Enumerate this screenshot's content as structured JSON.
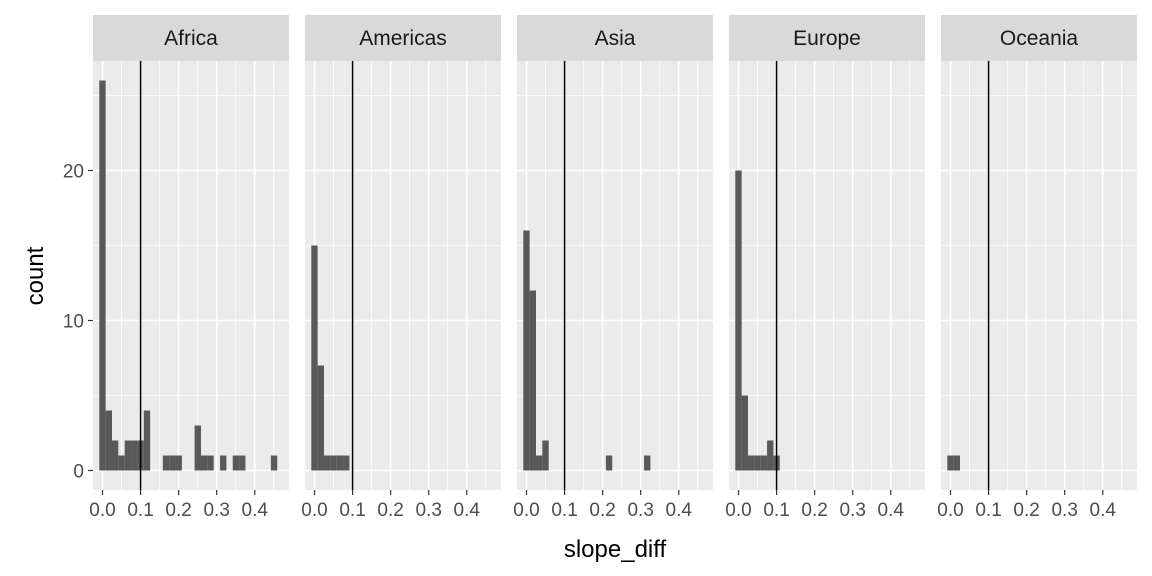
{
  "chart_data": {
    "type": "bar",
    "subtype": "faceted histogram",
    "xlabel": "slope_diff",
    "ylabel": "count",
    "xlim": [
      -0.025,
      0.49
    ],
    "ylim": [
      -1.3,
      27.3
    ],
    "x_ticks": [
      0.0,
      0.1,
      0.2,
      0.3,
      0.4
    ],
    "x_tick_labels": [
      "0.0",
      "0.1",
      "0.2",
      "0.3",
      "0.4"
    ],
    "y_ticks": [
      0,
      10,
      20
    ],
    "y_tick_labels": [
      "0",
      "10",
      "20"
    ],
    "bin_width": 0.0167,
    "reference_line_x": 0.1,
    "grid": true,
    "colors": {
      "bar": "#595959",
      "panel_background": "#ebebeb",
      "strip_background": "#d9d9d9",
      "grid": "#ffffff",
      "reference_line": "#000000"
    },
    "facets": [
      {
        "name": "Africa",
        "bins": [
          {
            "x0": -0.0085,
            "x1": 0.0082,
            "count": 26
          },
          {
            "x0": 0.0082,
            "x1": 0.0249,
            "count": 4
          },
          {
            "x0": 0.0249,
            "x1": 0.0416,
            "count": 2
          },
          {
            "x0": 0.0416,
            "x1": 0.0583,
            "count": 1
          },
          {
            "x0": 0.0583,
            "x1": 0.075,
            "count": 2
          },
          {
            "x0": 0.075,
            "x1": 0.0917,
            "count": 2
          },
          {
            "x0": 0.0917,
            "x1": 0.1084,
            "count": 2
          },
          {
            "x0": 0.1084,
            "x1": 0.1251,
            "count": 4
          },
          {
            "x0": 0.1585,
            "x1": 0.1752,
            "count": 1
          },
          {
            "x0": 0.1752,
            "x1": 0.1919,
            "count": 1
          },
          {
            "x0": 0.1919,
            "x1": 0.2086,
            "count": 1
          },
          {
            "x0": 0.242,
            "x1": 0.2587,
            "count": 3
          },
          {
            "x0": 0.2587,
            "x1": 0.2754,
            "count": 1
          },
          {
            "x0": 0.2754,
            "x1": 0.2921,
            "count": 1
          },
          {
            "x0": 0.3088,
            "x1": 0.3255,
            "count": 1
          },
          {
            "x0": 0.3422,
            "x1": 0.3589,
            "count": 1
          },
          {
            "x0": 0.3589,
            "x1": 0.3756,
            "count": 1
          },
          {
            "x0": 0.4424,
            "x1": 0.4591,
            "count": 1
          }
        ]
      },
      {
        "name": "Americas",
        "bins": [
          {
            "x0": -0.0085,
            "x1": 0.0082,
            "count": 15
          },
          {
            "x0": 0.0082,
            "x1": 0.0249,
            "count": 7
          },
          {
            "x0": 0.0249,
            "x1": 0.0416,
            "count": 1
          },
          {
            "x0": 0.0416,
            "x1": 0.0583,
            "count": 1
          },
          {
            "x0": 0.0583,
            "x1": 0.075,
            "count": 1
          },
          {
            "x0": 0.075,
            "x1": 0.0917,
            "count": 1
          }
        ]
      },
      {
        "name": "Asia",
        "bins": [
          {
            "x0": -0.0085,
            "x1": 0.0082,
            "count": 16
          },
          {
            "x0": 0.0082,
            "x1": 0.0249,
            "count": 12
          },
          {
            "x0": 0.0249,
            "x1": 0.0416,
            "count": 1
          },
          {
            "x0": 0.0416,
            "x1": 0.0583,
            "count": 2
          },
          {
            "x0": 0.2086,
            "x1": 0.2253,
            "count": 1
          },
          {
            "x0": 0.3088,
            "x1": 0.3255,
            "count": 1
          }
        ]
      },
      {
        "name": "Europe",
        "bins": [
          {
            "x0": -0.0085,
            "x1": 0.0082,
            "count": 20
          },
          {
            "x0": 0.0082,
            "x1": 0.0249,
            "count": 5
          },
          {
            "x0": 0.0249,
            "x1": 0.0416,
            "count": 1
          },
          {
            "x0": 0.0416,
            "x1": 0.0583,
            "count": 1
          },
          {
            "x0": 0.0583,
            "x1": 0.075,
            "count": 1
          },
          {
            "x0": 0.075,
            "x1": 0.0917,
            "count": 2
          },
          {
            "x0": 0.0917,
            "x1": 0.1084,
            "count": 1
          }
        ]
      },
      {
        "name": "Oceania",
        "bins": [
          {
            "x0": -0.0085,
            "x1": 0.0082,
            "count": 1
          },
          {
            "x0": 0.0082,
            "x1": 0.0249,
            "count": 1
          }
        ]
      }
    ]
  }
}
